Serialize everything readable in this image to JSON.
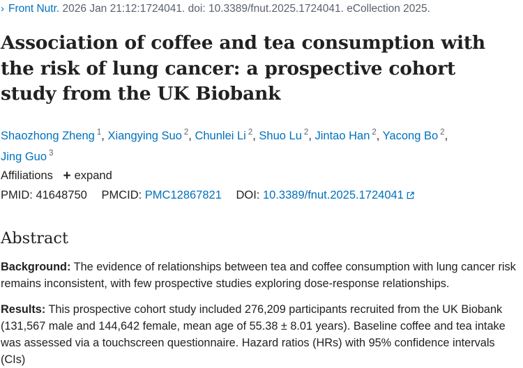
{
  "citation": {
    "journal": "Front Nutr.",
    "rest": " 2026 Jan 21:12:1724041. doi: 10.3389/fnut.2025.1724041. eCollection 2025."
  },
  "title": "Association of coffee and tea consumption with the risk of lung cancer: a prospective cohort study from the UK Biobank",
  "authors": [
    {
      "name": "Shaozhong Zheng",
      "aff": "1"
    },
    {
      "name": "Xiangying Suo",
      "aff": "2"
    },
    {
      "name": "Chunlei Li",
      "aff": "2"
    },
    {
      "name": "Shuo Lu",
      "aff": "2"
    },
    {
      "name": "Jintao Han",
      "aff": "2"
    },
    {
      "name": "Yacong Bo",
      "aff": "2"
    },
    {
      "name": "Jing Guo",
      "aff": "3"
    }
  ],
  "affiliations": {
    "label": "Affiliations",
    "expand": "expand",
    "expand_icon": "plus-icon"
  },
  "identifiers": {
    "pmid_label": "PMID:",
    "pmid": "41648750",
    "pmcid_label": "PMCID:",
    "pmcid": "PMC12867821",
    "doi_label": "DOI:",
    "doi": "10.3389/fnut.2025.1724041",
    "doi_icon": "external-link-icon"
  },
  "abstract": {
    "heading": "Abstract",
    "background_label": "Background:",
    "background_text": "The evidence of relationships between tea and coffee consumption with lung cancer risk remains inconsistent, with few prospective studies exploring dose-response relationships.",
    "results_label": "Results:",
    "results_text": "This prospective cohort study included 276,209 participants recruited from the UK Biobank (131,567 male and 144,642 female, mean age of 55.38 ± 8.01 years). Baseline coffee and tea intake was assessed via a touchscreen questionnaire. Hazard ratios (HRs) with 95% confidence intervals (CIs)"
  },
  "colors": {
    "link": "#0071bc",
    "text": "#212121",
    "muted": "#5b616b"
  }
}
